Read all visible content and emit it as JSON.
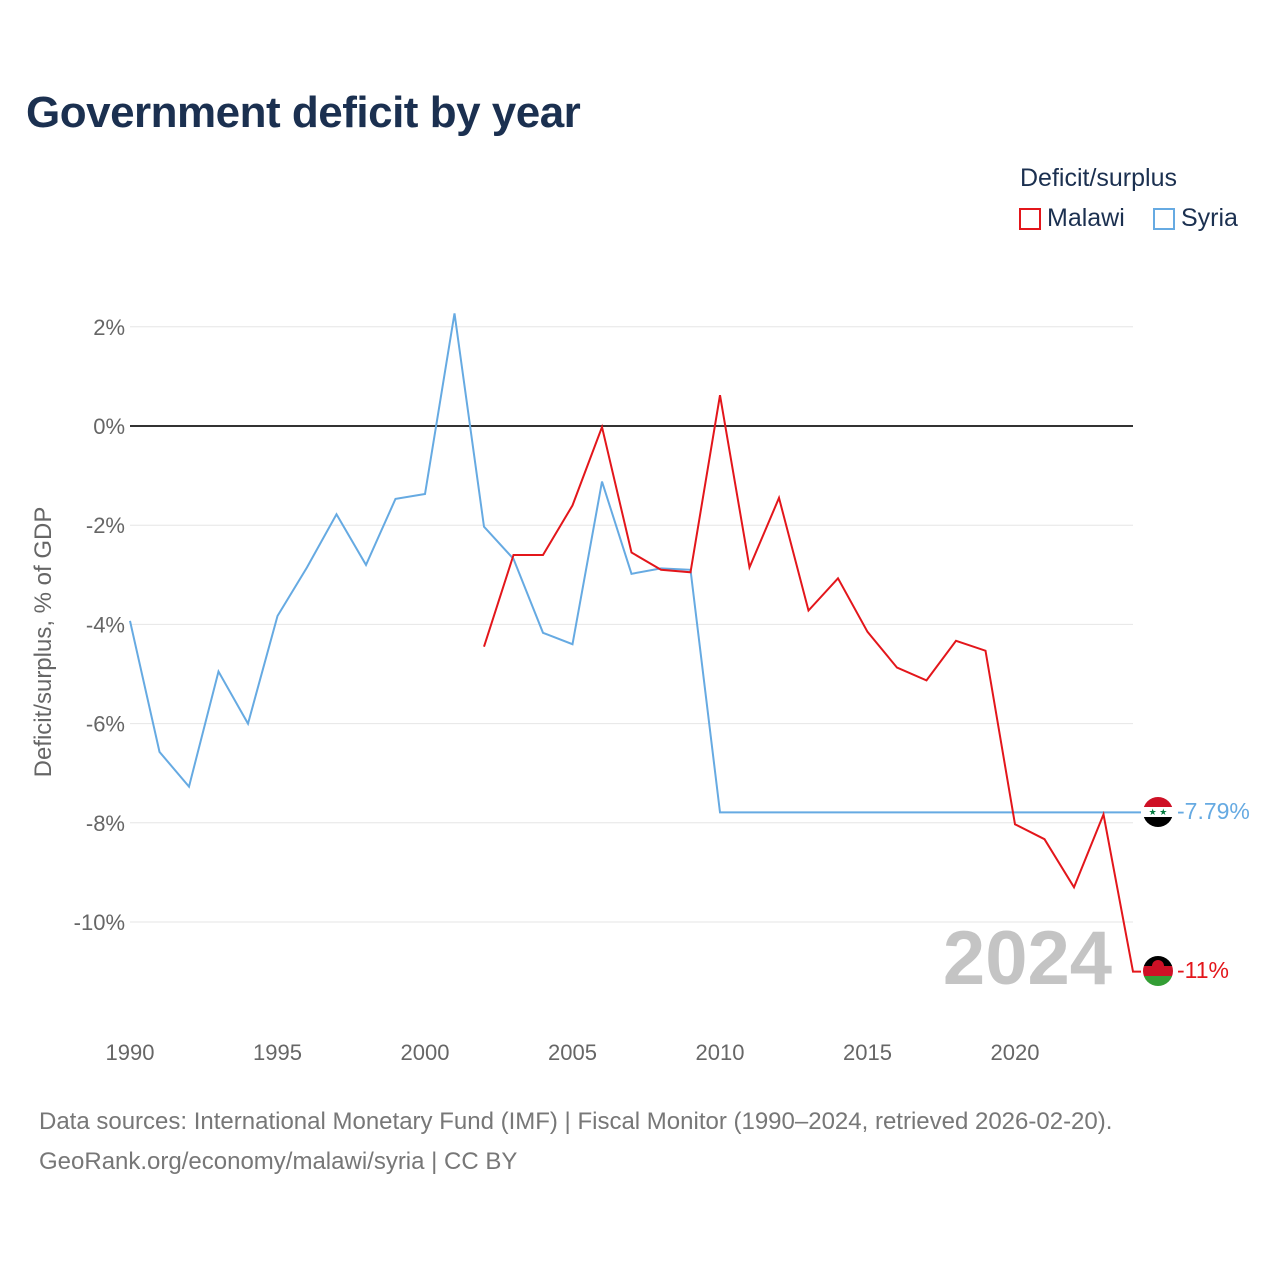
{
  "chart_data": {
    "type": "line",
    "title": "Government deficit by year",
    "ylabel": "Deficit/surplus, % of GDP",
    "xlabel": "",
    "xlim": [
      1990,
      2024
    ],
    "ylim": [
      -12,
      3
    ],
    "y_ticks": [
      2,
      0,
      -2,
      -4,
      -6,
      -8,
      -10
    ],
    "y_tick_labels": [
      "2%",
      "0%",
      "-2%",
      "-4%",
      "-6%",
      "-8%",
      "-10%"
    ],
    "x_ticks": [
      1990,
      1995,
      2000,
      2005,
      2010,
      2015,
      2020
    ],
    "x_tick_labels": [
      "1990",
      "1995",
      "2000",
      "2005",
      "2010",
      "2015",
      "2020"
    ],
    "legend_title": "Deficit/surplus",
    "legend_position": "top-right",
    "current_year": "2024",
    "series": [
      {
        "name": "Malawi",
        "color": "#e3161b",
        "end_label": "-11%",
        "x": [
          2002,
          2003,
          2004,
          2005,
          2006,
          2007,
          2008,
          2009,
          2010,
          2011,
          2012,
          2013,
          2014,
          2015,
          2016,
          2017,
          2018,
          2019,
          2020,
          2021,
          2022,
          2023,
          2024
        ],
        "values": [
          -4.45,
          -2.6,
          -2.6,
          -1.6,
          -0.02,
          -2.55,
          -2.9,
          -2.95,
          0.62,
          -2.85,
          -1.45,
          -3.72,
          -3.07,
          -4.15,
          -4.87,
          -5.13,
          -4.33,
          -4.53,
          -8.03,
          -8.33,
          -9.3,
          -7.83,
          -11.0
        ]
      },
      {
        "name": "Syria",
        "color": "#66aae2",
        "end_label": "-7.79%",
        "x": [
          1990,
          1991,
          1992,
          1993,
          1994,
          1995,
          1996,
          1997,
          1998,
          1999,
          2000,
          2001,
          2002,
          2003,
          2004,
          2005,
          2006,
          2007,
          2008,
          2009,
          2010,
          2011,
          2012,
          2013,
          2014,
          2015,
          2016,
          2017,
          2018,
          2019,
          2020,
          2021,
          2022,
          2023,
          2024
        ],
        "values": [
          -3.93,
          -6.57,
          -7.27,
          -4.95,
          -6.0,
          -3.83,
          -2.85,
          -1.78,
          -2.8,
          -1.47,
          -1.37,
          2.27,
          -2.03,
          -2.68,
          -4.17,
          -4.4,
          -1.12,
          -2.98,
          -2.87,
          -2.9,
          -7.79,
          -7.79,
          -7.79,
          -7.79,
          -7.79,
          -7.79,
          -7.79,
          -7.79,
          -7.79,
          -7.79,
          -7.79,
          -7.79,
          -7.79,
          -7.79,
          -7.79
        ]
      }
    ]
  },
  "footer": {
    "line1": "Data sources: International Monetary Fund (IMF) | Fiscal Monitor (1990–2024, retrieved 2026-02-20).",
    "line2": "GeoRank.org/economy/malawi/syria | CC BY"
  }
}
